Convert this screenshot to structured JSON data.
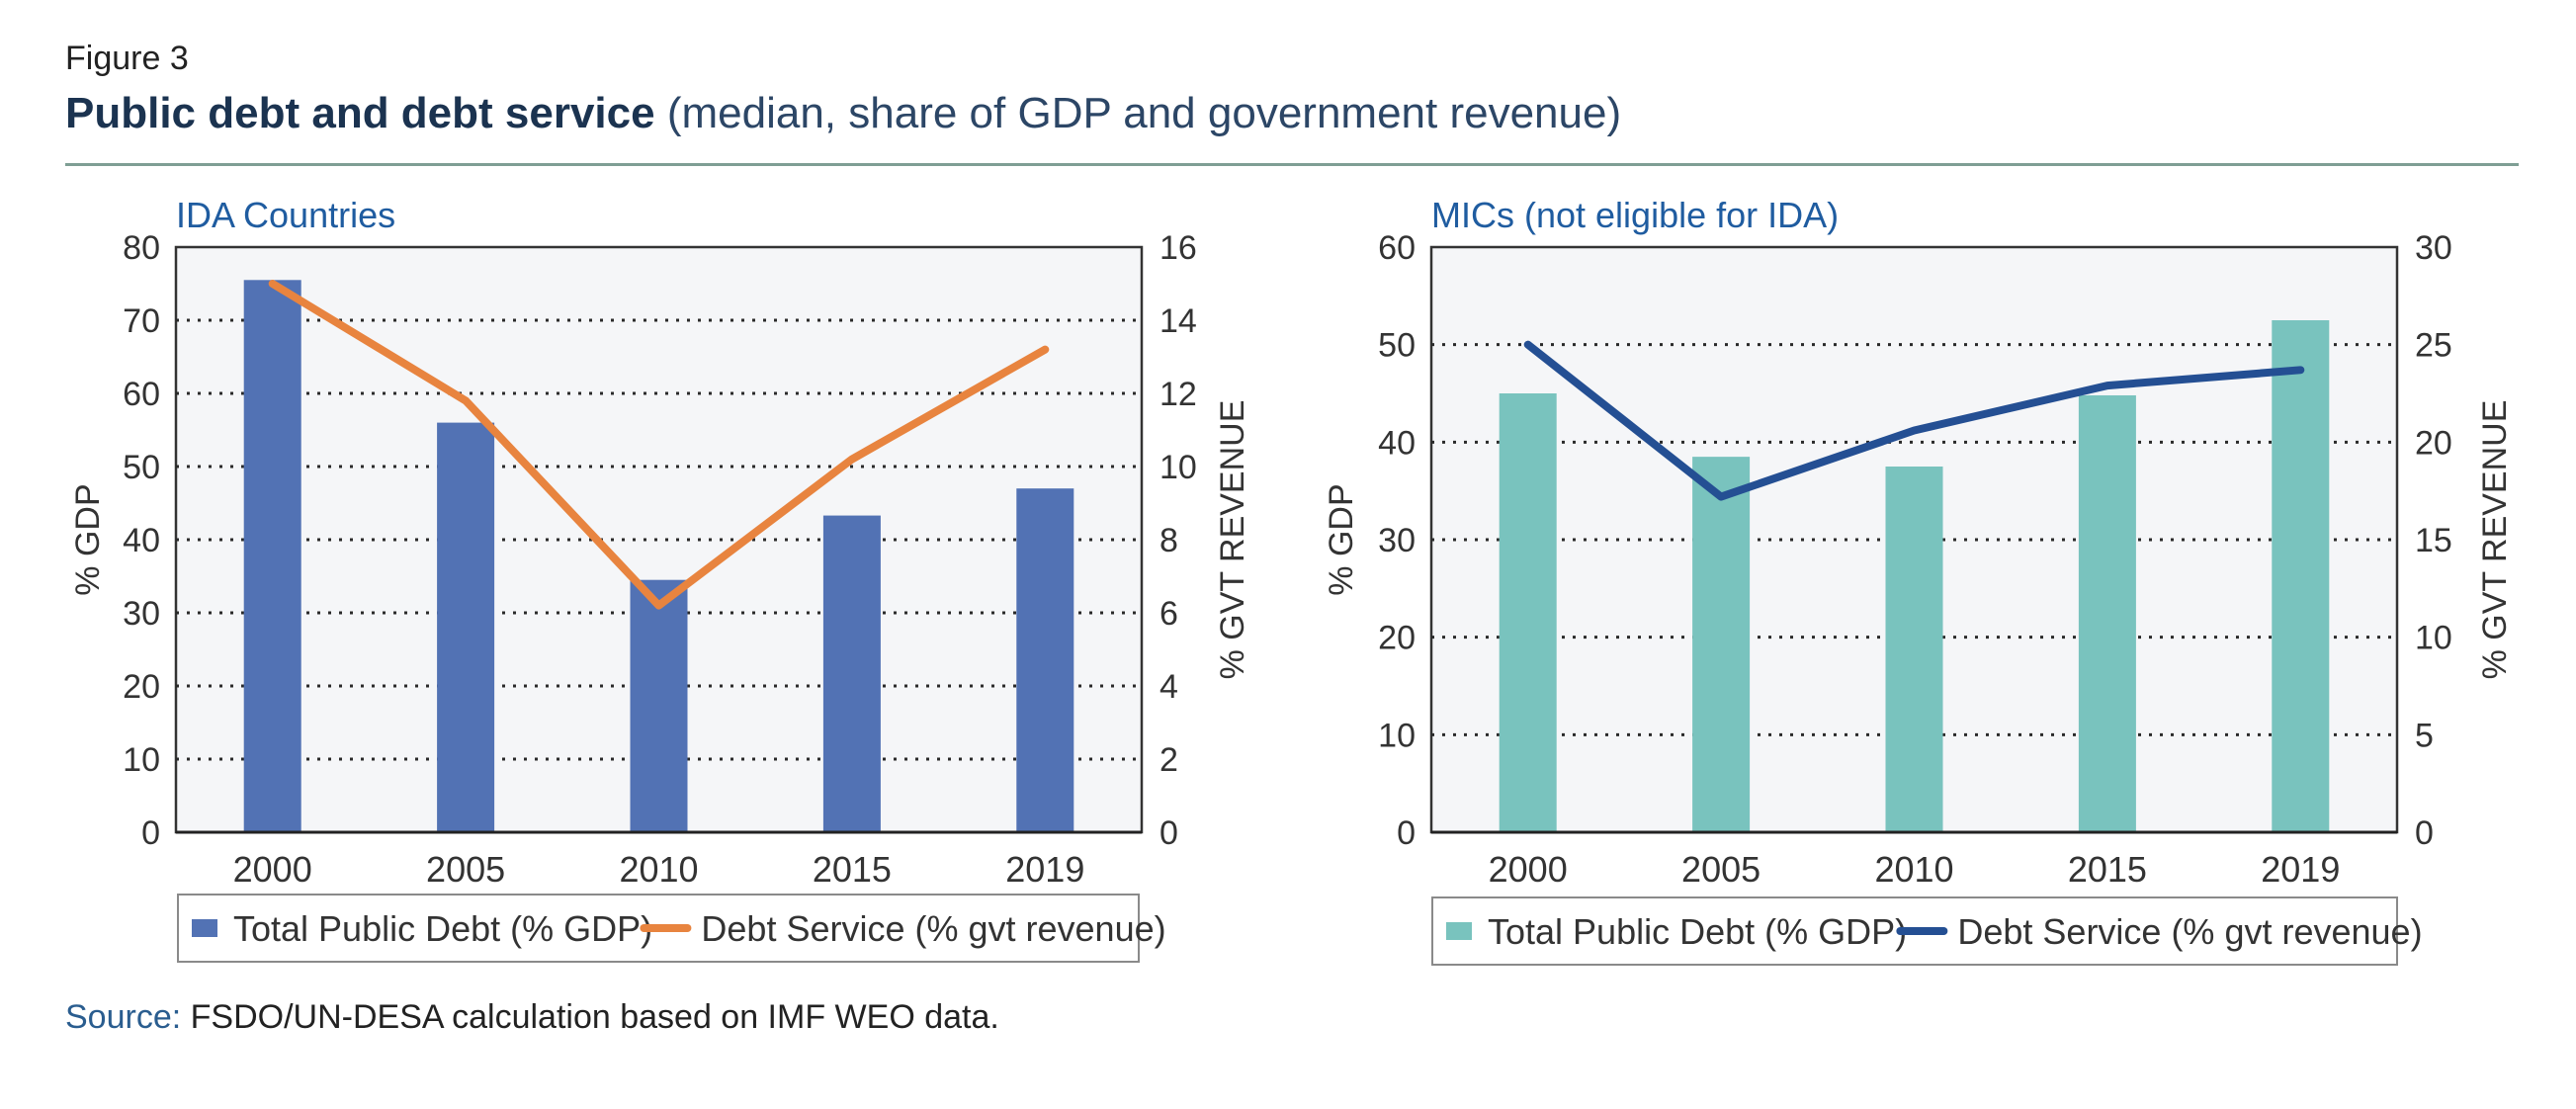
{
  "figure": {
    "label": "Figure 3",
    "title": "Public debt and debt service",
    "subtitle": "(median, share of GDP and government revenue)"
  },
  "source": {
    "label": "Source:",
    "text": " FSDO/UN-DESA calculation based on IMF WEO data."
  },
  "colors": {
    "ida_bar": "#5272b4",
    "ida_line": "#e8843f",
    "mic_bar": "#79c3be",
    "mic_line": "#244f93",
    "panel_title": "#1f5ca0",
    "plot_bg": "#f5f6f8"
  },
  "chart_data": [
    {
      "type": "bar",
      "title": "IDA Countries",
      "categories": [
        "2000",
        "2005",
        "2010",
        "2015",
        "2019"
      ],
      "series": [
        {
          "name": "Total Public Debt (% GDP)",
          "type": "bar",
          "axis": "left",
          "values": [
            75.5,
            56,
            34.5,
            43.3,
            47
          ]
        },
        {
          "name": "Debt Service (% gvt revenue)",
          "type": "line",
          "axis": "right",
          "values": [
            15,
            11.8,
            6.2,
            10.2,
            13.2
          ]
        }
      ],
      "ylabel": "% GDP",
      "ylim": [
        0,
        80
      ],
      "yticks": [
        "0",
        "10",
        "20",
        "30",
        "40",
        "50",
        "60",
        "70",
        "80"
      ],
      "y2label": "% GVT REVENUE",
      "y2lim": [
        0,
        16
      ],
      "y2ticks": [
        "0",
        "2",
        "4",
        "6",
        "8",
        "10",
        "12",
        "14",
        "16"
      ],
      "grid": true,
      "legend": "bottom"
    },
    {
      "type": "bar",
      "title": "MICs (not eligible for IDA)",
      "categories": [
        "2000",
        "2005",
        "2010",
        "2015",
        "2019"
      ],
      "series": [
        {
          "name": "Total Public Debt (% GDP)",
          "type": "bar",
          "axis": "left",
          "values": [
            45,
            38.5,
            37.5,
            44.8,
            52.5
          ]
        },
        {
          "name": "Debt Service (% gvt revenue)",
          "type": "line",
          "axis": "right",
          "values": [
            25,
            17.2,
            20.6,
            22.9,
            23.7
          ]
        }
      ],
      "ylabel": "% GDP",
      "ylim": [
        0,
        60
      ],
      "yticks": [
        "0",
        "10",
        "20",
        "30",
        "40",
        "50",
        "60"
      ],
      "y2label": "% GVT REVENUE",
      "y2lim": [
        0,
        30
      ],
      "y2ticks": [
        "0",
        "5",
        "10",
        "15",
        "20",
        "25",
        "30"
      ],
      "grid": true,
      "legend": "bottom"
    }
  ]
}
